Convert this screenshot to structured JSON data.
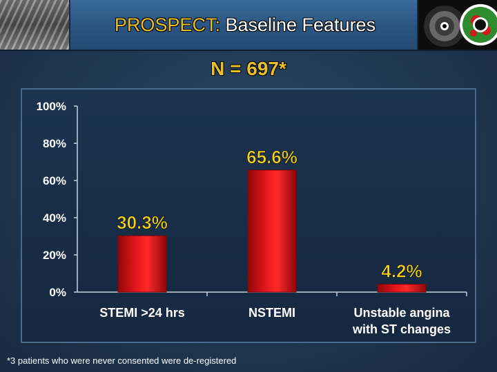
{
  "header": {
    "title_accent": "PROSPECT:",
    "title_main": " Baseline Features"
  },
  "subtitle": "N = 697*",
  "footnote": "*3 patients who were never consented were de-registered",
  "colors": {
    "bar": "#e0151a",
    "bar_dark": "#7a0608",
    "data_label": "#f2d21e",
    "tick_label": "#ffffff",
    "axis": "#c9d3de"
  },
  "chart_data": {
    "type": "bar",
    "categories": [
      [
        "STEMI >24 hrs"
      ],
      [
        "NSTEMI"
      ],
      [
        "Unstable angina",
        "with ST changes"
      ]
    ],
    "values": [
      30.3,
      65.6,
      4.2
    ],
    "data_labels": [
      "30.3%",
      "65.6%",
      "4.2%"
    ],
    "ylim": [
      0,
      100
    ],
    "yticks": [
      0,
      20,
      40,
      60,
      80,
      100
    ],
    "ytick_labels": [
      "0%",
      "20%",
      "40%",
      "60%",
      "80%",
      "100%"
    ],
    "title": "",
    "xlabel": "",
    "ylabel": "",
    "grid": false,
    "legend": "none"
  }
}
